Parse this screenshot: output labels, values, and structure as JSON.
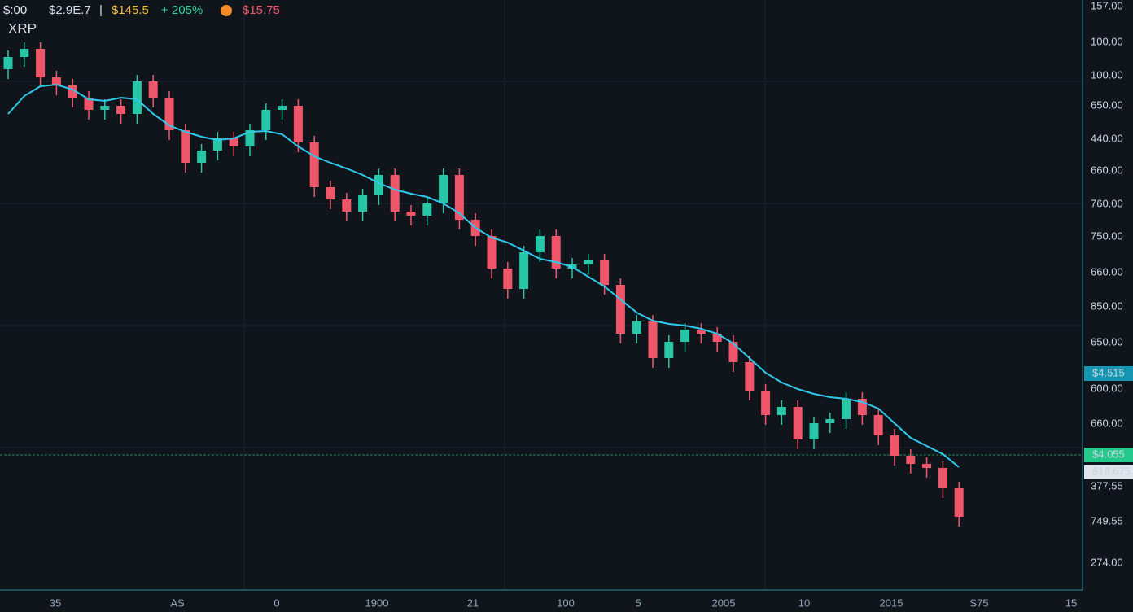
{
  "chart_data": {
    "type": "candlestick",
    "header": [
      "$:00",
      "$2.9E.7",
      "|",
      "$145.5",
      "+ 205%",
      "$15.75"
    ],
    "title": "XRP",
    "up_color": "#26c6a6",
    "down_color": "#f0566a",
    "ma_color": "#2fc8ea",
    "ylim": [
      0,
      725
    ],
    "open": [
      640,
      655,
      665,
      630,
      620,
      605,
      590,
      595,
      585,
      625,
      605,
      565,
      525,
      540,
      555,
      545,
      565,
      590,
      595,
      550,
      495,
      480,
      465,
      485,
      510,
      465,
      460,
      475,
      510,
      455,
      435,
      395,
      370,
      415,
      435,
      395,
      400,
      405,
      375,
      315,
      330,
      285,
      305,
      320,
      315,
      305,
      280,
      245,
      215,
      225,
      185,
      205,
      210,
      235,
      215,
      190,
      165,
      155,
      150,
      125
    ],
    "high": [
      663,
      673,
      673,
      638,
      628,
      613,
      603,
      603,
      633,
      633,
      613,
      573,
      548,
      563,
      563,
      573,
      598,
      603,
      603,
      558,
      503,
      488,
      493,
      518,
      518,
      473,
      483,
      518,
      518,
      463,
      443,
      403,
      423,
      443,
      443,
      408,
      413,
      413,
      383,
      338,
      338,
      313,
      328,
      328,
      323,
      313,
      288,
      253,
      233,
      233,
      213,
      218,
      243,
      243,
      223,
      198,
      173,
      163,
      158,
      133
    ],
    "low": [
      628,
      643,
      618,
      608,
      593,
      578,
      578,
      573,
      573,
      593,
      553,
      513,
      513,
      528,
      533,
      533,
      553,
      578,
      538,
      483,
      468,
      453,
      453,
      473,
      453,
      448,
      448,
      463,
      443,
      423,
      383,
      358,
      358,
      403,
      383,
      383,
      388,
      363,
      303,
      303,
      273,
      273,
      293,
      303,
      293,
      268,
      233,
      203,
      203,
      173,
      173,
      193,
      198,
      203,
      178,
      153,
      143,
      138,
      113,
      78
    ],
    "close": [
      655,
      665,
      630,
      620,
      605,
      590,
      595,
      585,
      625,
      605,
      565,
      525,
      540,
      555,
      545,
      565,
      590,
      595,
      550,
      495,
      480,
      465,
      485,
      510,
      465,
      460,
      475,
      510,
      455,
      435,
      395,
      370,
      415,
      435,
      395,
      400,
      405,
      375,
      315,
      330,
      285,
      305,
      320,
      315,
      305,
      280,
      245,
      215,
      225,
      185,
      205,
      210,
      235,
      215,
      190,
      165,
      155,
      150,
      125,
      90
    ],
    "ma": [
      585,
      607,
      619,
      621,
      615,
      603,
      601,
      605,
      603,
      585,
      571,
      563,
      557,
      553,
      555,
      563,
      564,
      560,
      545,
      533,
      525,
      518,
      510,
      500,
      492,
      487,
      483,
      475,
      463,
      445,
      433,
      427,
      417,
      407,
      403,
      397,
      385,
      373,
      357,
      341,
      331,
      327,
      325,
      321,
      315,
      303,
      285,
      267,
      255,
      247,
      241,
      237,
      235,
      231,
      223,
      205,
      187,
      177,
      167,
      151
    ],
    "y_axis_labels": [
      "157.00",
      "100.00",
      "100.00",
      "650.00",
      "440.00",
      "660.00",
      "760.00",
      "750.00",
      "660.00",
      "850.00",
      "650.00",
      "600.00",
      "660.00",
      "377.55",
      "749.55",
      "274.00"
    ],
    "price_badges": [
      "$4.515",
      "$4.055",
      "$18.675"
    ],
    "x_axis_labels": [
      "35",
      "AS",
      "0",
      "1900",
      "21",
      "100",
      "5",
      "2005",
      "10",
      "2015",
      "S75",
      "15"
    ]
  }
}
